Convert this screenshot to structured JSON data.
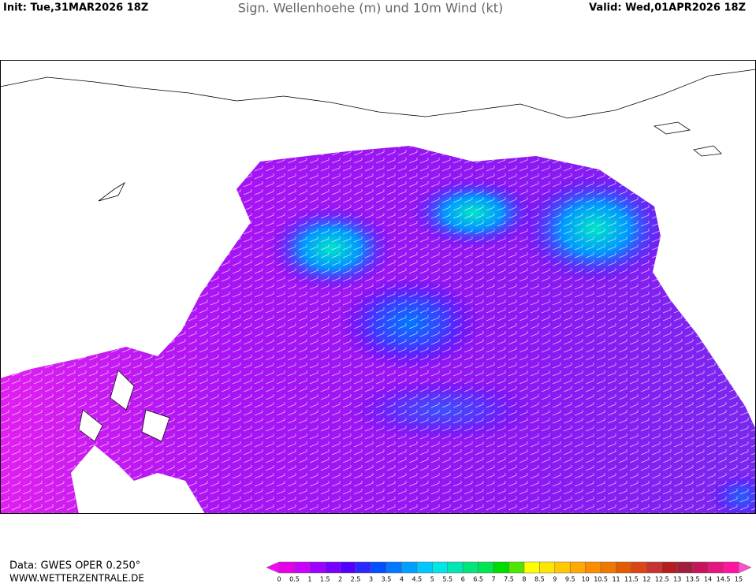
{
  "header": {
    "init": "Init: Tue,31MAR2026 18Z",
    "title": "Sign. Wellenhoehe (m) und 10m Wind (kt)",
    "valid": "Valid: Wed,01APR2026 18Z"
  },
  "footer": {
    "source": "Data: GWES OPER 0.250°",
    "site": "WWW.WETTERZENTRALE.DE"
  },
  "colorbar": {
    "labels": [
      0,
      0.5,
      1,
      1.5,
      2,
      2.5,
      3,
      3.5,
      4,
      4.5,
      5,
      5.5,
      6,
      6.5,
      7,
      7.5,
      8,
      8.5,
      9,
      9.5,
      10,
      10.5,
      11,
      11.5,
      12,
      12.5,
      13,
      13.5,
      14,
      14.5,
      15
    ],
    "colors": [
      "#e600e6",
      "#cc00ff",
      "#a000ff",
      "#7800ff",
      "#5000ff",
      "#2828ff",
      "#0050ff",
      "#0078ff",
      "#00a0ff",
      "#00c8ff",
      "#00e6e6",
      "#00e6b4",
      "#00e678",
      "#00e650",
      "#00dc00",
      "#50e600",
      "#ffff00",
      "#ffe600",
      "#ffc800",
      "#ffaa00",
      "#ff8c00",
      "#f07800",
      "#e65a00",
      "#dc4614",
      "#c83232",
      "#b41e1e",
      "#a01e3c",
      "#c8145a",
      "#e6147d",
      "#ff14a0"
    ],
    "under_color": "#ff00ff",
    "over_color": "#ff50c8"
  }
}
